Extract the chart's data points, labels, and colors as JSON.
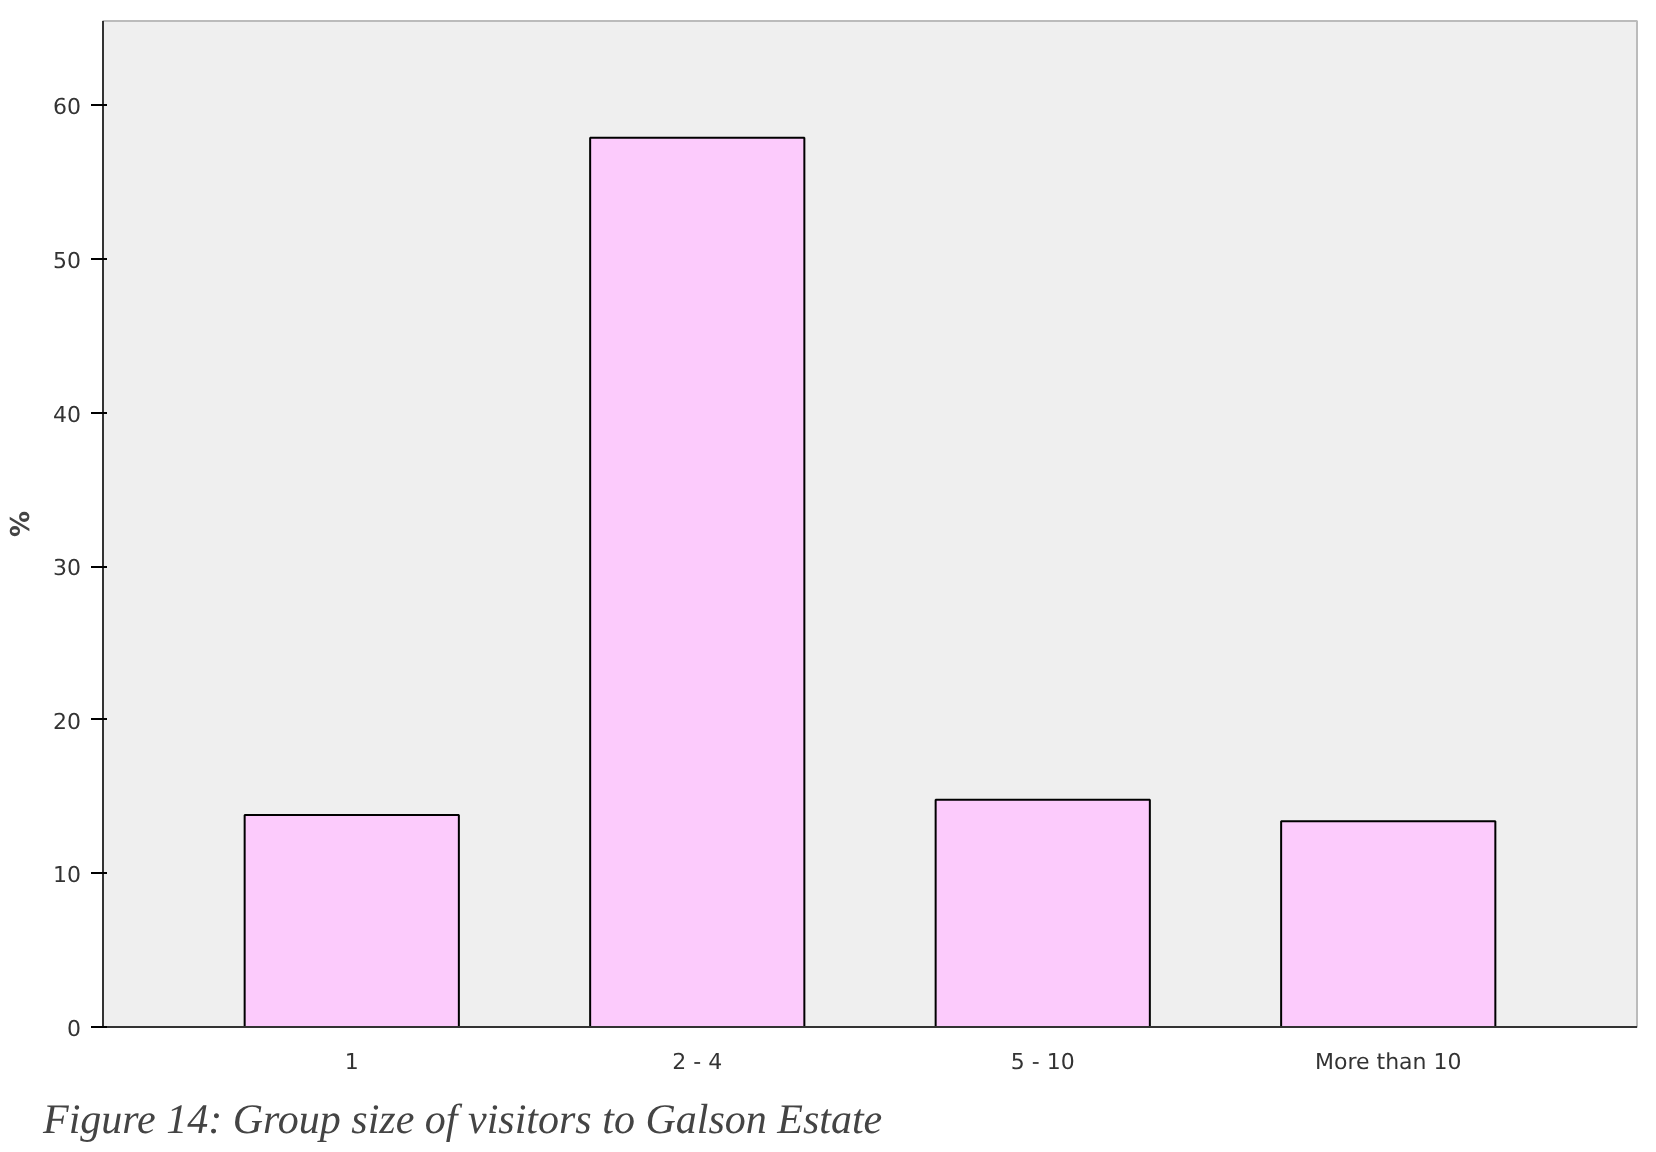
{
  "chart_data": {
    "type": "bar",
    "ylabel": "%",
    "categories": [
      "1",
      "2 - 4",
      "5 - 10",
      "More than 10"
    ],
    "values": [
      13.8,
      57.9,
      14.8,
      13.4
    ],
    "color": "#fccbfc",
    "ylim": [
      0,
      65.5
    ],
    "yticks": [
      0,
      10,
      20,
      30,
      40,
      50,
      60
    ],
    "grid": false,
    "annotations": [
      "Figure 14: Group size of visitors to Galson Estate"
    ]
  }
}
